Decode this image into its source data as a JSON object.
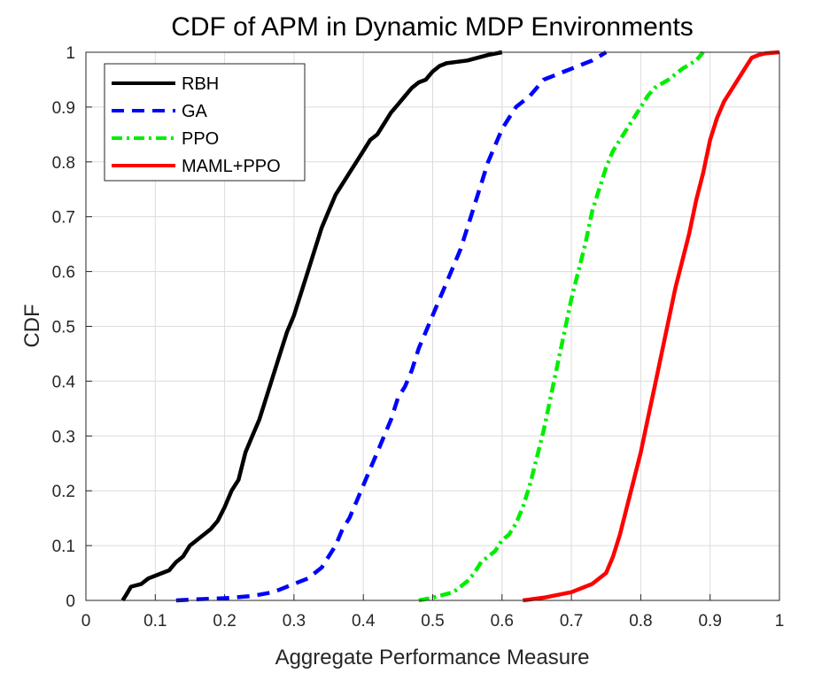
{
  "chart_data": {
    "type": "line",
    "title": "CDF of APM in Dynamic MDP Environments",
    "xlabel": "Aggregate Performance Measure",
    "ylabel": "CDF",
    "xlim": [
      0,
      1
    ],
    "ylim": [
      0,
      1
    ],
    "grid": true,
    "legend_position": "top-left",
    "x_tick_labels": [
      "0",
      "0.1",
      "0.2",
      "0.3",
      "0.4",
      "0.5",
      "0.6",
      "0.7",
      "0.8",
      "0.9",
      "1"
    ],
    "y_tick_labels": [
      "0",
      "0.1",
      "0.2",
      "0.3",
      "0.4",
      "0.5",
      "0.6",
      "0.7",
      "0.8",
      "0.9",
      "1"
    ],
    "series": [
      {
        "name": "RBH",
        "color": "#000000",
        "style": "solid",
        "x": [
          0.053,
          0.058,
          0.065,
          0.08,
          0.09,
          0.1,
          0.12,
          0.13,
          0.14,
          0.15,
          0.16,
          0.18,
          0.19,
          0.2,
          0.21,
          0.22,
          0.23,
          0.24,
          0.25,
          0.26,
          0.27,
          0.28,
          0.29,
          0.3,
          0.31,
          0.32,
          0.33,
          0.34,
          0.35,
          0.36,
          0.37,
          0.38,
          0.39,
          0.4,
          0.41,
          0.42,
          0.43,
          0.44,
          0.45,
          0.46,
          0.47,
          0.48,
          0.49,
          0.5,
          0.51,
          0.52,
          0.55,
          0.58,
          0.6
        ],
        "y": [
          0,
          0.01,
          0.025,
          0.03,
          0.04,
          0.045,
          0.055,
          0.07,
          0.08,
          0.1,
          0.11,
          0.13,
          0.145,
          0.17,
          0.2,
          0.22,
          0.27,
          0.3,
          0.33,
          0.37,
          0.41,
          0.45,
          0.49,
          0.52,
          0.56,
          0.6,
          0.64,
          0.68,
          0.71,
          0.74,
          0.76,
          0.78,
          0.8,
          0.82,
          0.84,
          0.85,
          0.87,
          0.89,
          0.905,
          0.92,
          0.935,
          0.945,
          0.95,
          0.965,
          0.975,
          0.98,
          0.985,
          0.995,
          1.0
        ]
      },
      {
        "name": "GA",
        "color": "#0000ff",
        "style": "dashed",
        "x": [
          0.13,
          0.16,
          0.2,
          0.24,
          0.27,
          0.3,
          0.32,
          0.34,
          0.35,
          0.36,
          0.37,
          0.38,
          0.39,
          0.4,
          0.41,
          0.42,
          0.43,
          0.44,
          0.45,
          0.46,
          0.47,
          0.48,
          0.49,
          0.5,
          0.51,
          0.52,
          0.53,
          0.54,
          0.55,
          0.56,
          0.57,
          0.58,
          0.59,
          0.6,
          0.61,
          0.62,
          0.64,
          0.66,
          0.7,
          0.73,
          0.75
        ],
        "y": [
          0,
          0.002,
          0.004,
          0.008,
          0.015,
          0.03,
          0.04,
          0.06,
          0.08,
          0.1,
          0.13,
          0.15,
          0.18,
          0.21,
          0.24,
          0.27,
          0.3,
          0.33,
          0.37,
          0.39,
          0.42,
          0.46,
          0.49,
          0.52,
          0.55,
          0.58,
          0.61,
          0.64,
          0.68,
          0.72,
          0.76,
          0.8,
          0.83,
          0.86,
          0.88,
          0.9,
          0.92,
          0.95,
          0.97,
          0.985,
          1.0
        ]
      },
      {
        "name": "PPO",
        "color": "#00ee00",
        "style": "dashdot",
        "x": [
          0.48,
          0.5,
          0.53,
          0.55,
          0.56,
          0.57,
          0.58,
          0.59,
          0.6,
          0.61,
          0.62,
          0.63,
          0.64,
          0.65,
          0.66,
          0.67,
          0.68,
          0.69,
          0.7,
          0.71,
          0.72,
          0.73,
          0.74,
          0.75,
          0.76,
          0.77,
          0.78,
          0.79,
          0.8,
          0.81,
          0.82,
          0.84,
          0.86,
          0.88,
          0.89
        ],
        "y": [
          0,
          0.005,
          0.015,
          0.035,
          0.05,
          0.07,
          0.08,
          0.09,
          0.11,
          0.12,
          0.14,
          0.17,
          0.21,
          0.26,
          0.31,
          0.37,
          0.43,
          0.49,
          0.55,
          0.6,
          0.65,
          0.71,
          0.75,
          0.79,
          0.82,
          0.84,
          0.86,
          0.88,
          0.9,
          0.92,
          0.935,
          0.95,
          0.97,
          0.985,
          1.0
        ]
      },
      {
        "name": "MAML+PPO",
        "color": "#ff0000",
        "style": "solid",
        "x": [
          0.63,
          0.66,
          0.7,
          0.73,
          0.75,
          0.76,
          0.77,
          0.78,
          0.79,
          0.8,
          0.81,
          0.82,
          0.83,
          0.84,
          0.85,
          0.86,
          0.87,
          0.88,
          0.89,
          0.9,
          0.91,
          0.92,
          0.93,
          0.94,
          0.95,
          0.96,
          0.97,
          0.98,
          1.0
        ],
        "y": [
          0,
          0.005,
          0.015,
          0.03,
          0.05,
          0.08,
          0.12,
          0.17,
          0.22,
          0.27,
          0.33,
          0.39,
          0.45,
          0.51,
          0.57,
          0.62,
          0.67,
          0.73,
          0.78,
          0.84,
          0.88,
          0.91,
          0.93,
          0.95,
          0.97,
          0.99,
          0.995,
          0.998,
          1.0
        ]
      }
    ]
  }
}
